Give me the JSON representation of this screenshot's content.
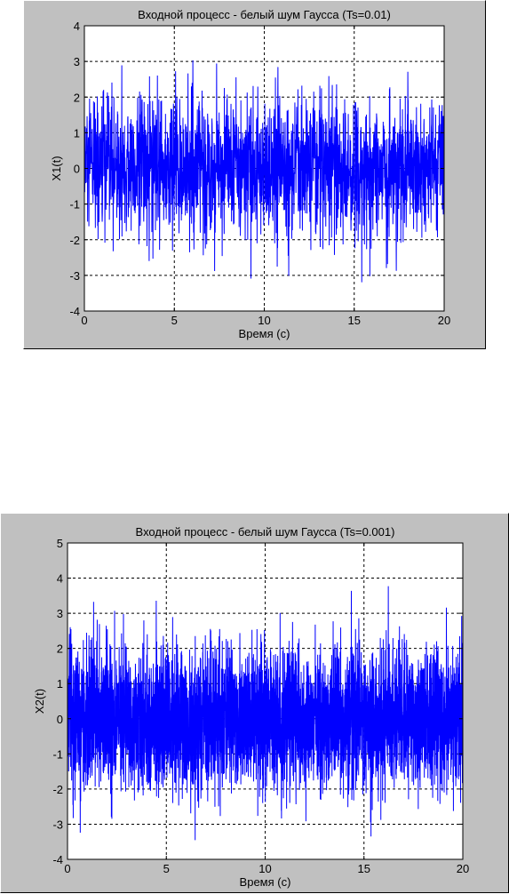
{
  "chart_data": [
    {
      "type": "line",
      "title": "Входной процесс - белый шум Гаусса (Ts=0.01)",
      "xlabel": "Время (c)",
      "ylabel": "X1(t)",
      "xlim": [
        0,
        20
      ],
      "ylim": [
        -4,
        4
      ],
      "xticks": [
        "0",
        "5",
        "10",
        "15",
        "20"
      ],
      "yticks": [
        "-4",
        "-3",
        "-2",
        "-1",
        "0",
        "1",
        "2",
        "3",
        "4"
      ],
      "grid": true,
      "series": [
        {
          "color": "#0000ff",
          "sample_period": 0.01,
          "mean": 0,
          "std_dev": 1,
          "description_x": [
            0,
            20
          ],
          "y_min": -3.6,
          "y_max": 3.45
        }
      ]
    },
    {
      "type": "line",
      "title": "Входной процесс - белый шум Гаусса (Ts=0.001)",
      "xlabel": "Время (c)",
      "ylabel": "X2(t)",
      "xlim": [
        0,
        20
      ],
      "ylim": [
        -4,
        5
      ],
      "xticks": [
        "0",
        "5",
        "10",
        "15",
        "20"
      ],
      "yticks": [
        "-4",
        "-3",
        "-2",
        "-1",
        "0",
        "1",
        "2",
        "3",
        "4",
        "5"
      ],
      "grid": true,
      "series": [
        {
          "color": "#0000ff",
          "sample_period": 0.001,
          "mean": 0,
          "std_dev": 1,
          "description_x": [
            0,
            20
          ],
          "y_min": -3.75,
          "y_max": 4.2
        }
      ]
    }
  ]
}
